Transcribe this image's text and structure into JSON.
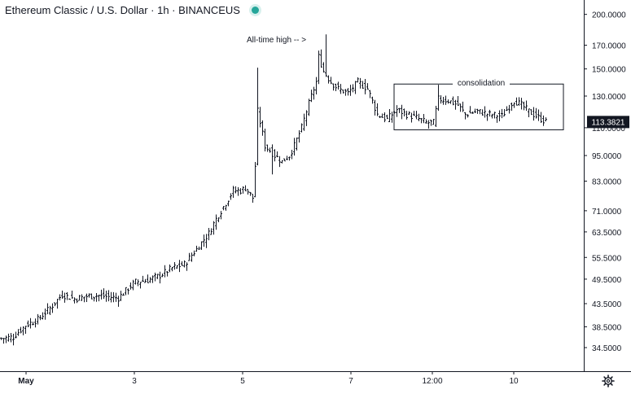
{
  "header": {
    "symbol_title": "Ethereum Classic / U.S. Dollar · 1h · BINANCEUS"
  },
  "colors": {
    "background": "#ffffff",
    "candle": "#131722",
    "axis_line": "#131722",
    "grid": "#ffffff",
    "price_label_bg": "#131722",
    "price_label_text": "#ffffff",
    "status_dot": "#26a69a"
  },
  "icons": {
    "settings": "gear-icon",
    "status": "status-dot-icon"
  },
  "chart_data": {
    "type": "ohlc",
    "title": "Ethereum Classic / U.S. Dollar · 1h · BINANCEUS",
    "scale": "log",
    "ylim": [
      30.5,
      232
    ],
    "y_ticks": [
      "200.0000",
      "170.0000",
      "150.0000",
      "130.0000",
      "110.0000",
      "95.0000",
      "83.0000",
      "71.0000",
      "63.5000",
      "55.5000",
      "49.5000",
      "43.5000",
      "38.5000",
      "34.5000"
    ],
    "x_ticks": [
      "May",
      "3",
      "5",
      "7",
      "12:00",
      "10"
    ],
    "last_price": "113.3821",
    "annotations": {
      "all_time_high": "All-time high -- >",
      "consolidation": "consolidation"
    },
    "consolidation_range": {
      "low": 108.8,
      "high": 138.5
    },
    "anchors": [
      [
        0,
        36.2
      ],
      [
        5,
        36.5
      ],
      [
        10,
        38.8
      ],
      [
        15,
        40.0
      ],
      [
        20,
        42.5
      ],
      [
        25,
        45.6
      ],
      [
        30,
        44.6
      ],
      [
        35,
        45.2
      ],
      [
        40,
        45.4
      ],
      [
        48,
        44.8
      ],
      [
        52,
        47.2
      ],
      [
        55,
        48.8
      ],
      [
        60,
        49.2
      ],
      [
        65,
        50.5
      ],
      [
        70,
        52.5
      ],
      [
        75,
        53.5
      ],
      [
        80,
        58.0
      ],
      [
        85,
        63.0
      ],
      [
        88,
        68.0
      ],
      [
        92,
        74.0
      ],
      [
        95,
        79.0
      ],
      [
        98,
        79.0
      ],
      [
        100,
        80.0
      ],
      [
        103,
        76.0
      ],
      [
        104,
        90.0
      ],
      [
        105,
        120.0
      ],
      [
        108,
        100.0
      ],
      [
        112,
        95.0
      ],
      [
        115,
        92.0
      ],
      [
        118,
        95.0
      ],
      [
        120,
        100.0
      ],
      [
        123,
        110.0
      ],
      [
        126,
        125.0
      ],
      [
        129,
        140.0
      ],
      [
        130,
        160.0
      ],
      [
        132,
        148.0
      ],
      [
        135,
        140.0
      ],
      [
        138,
        135.0
      ],
      [
        142,
        132.0
      ],
      [
        146,
        140.0
      ],
      [
        150,
        135.0
      ],
      [
        154,
        118.0
      ],
      [
        158,
        115.0
      ],
      [
        162,
        121.0
      ],
      [
        166,
        118.0
      ],
      [
        170,
        116.0
      ],
      [
        174,
        113.0
      ],
      [
        177,
        113.0
      ],
      [
        179,
        128.0
      ],
      [
        183,
        127.0
      ],
      [
        187,
        124.0
      ],
      [
        190,
        118.0
      ],
      [
        195,
        120.0
      ],
      [
        200,
        118.0
      ],
      [
        205,
        117.0
      ],
      [
        210,
        127.0
      ],
      [
        213,
        124.0
      ],
      [
        216,
        120.0
      ],
      [
        219,
        117.0
      ],
      [
        223,
        113.4
      ]
    ],
    "spikes": [
      {
        "i": 105,
        "high": 151.0
      },
      {
        "i": 133,
        "high": 180.0
      },
      {
        "i": 179,
        "high": 138.0
      },
      {
        "i": 111,
        "low": 86.0
      }
    ],
    "bar_count": 224
  }
}
